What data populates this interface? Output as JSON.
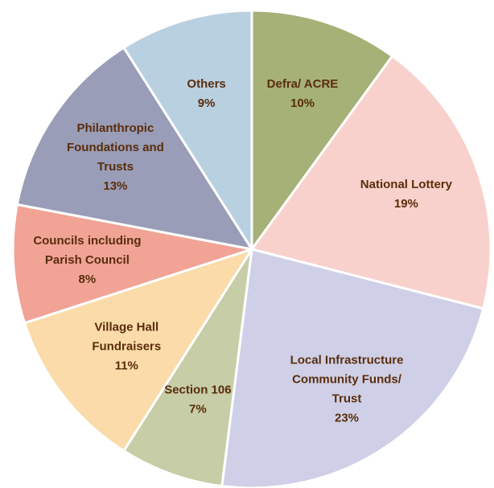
{
  "chart_data": {
    "type": "pie",
    "title": "",
    "start_angle_deg": 0,
    "direction": "clockwise",
    "slices": [
      {
        "label_lines": [
          "Defra/ ACRE"
        ],
        "value": 10,
        "value_label": "10%",
        "color": "#a5b176"
      },
      {
        "label_lines": [
          "National Lottery"
        ],
        "value": 19,
        "value_label": "19%",
        "color": "#f8d1cc"
      },
      {
        "label_lines": [
          "Local Infrastructure",
          "Community Funds/",
          "Trust"
        ],
        "value": 23,
        "value_label": "23%",
        "color": "#cfd0e7"
      },
      {
        "label_lines": [
          "Section 106"
        ],
        "value": 7,
        "value_label": "7%",
        "color": "#c6cda7"
      },
      {
        "label_lines": [
          "Village Hall",
          "Fundraisers"
        ],
        "value": 11,
        "value_label": "11%",
        "color": "#fadba9"
      },
      {
        "label_lines": [
          "Councils including",
          "Parish Council"
        ],
        "value": 8,
        "value_label": "8%",
        "color": "#f1a396"
      },
      {
        "label_lines": [
          "Philanthropic",
          "Foundations and",
          "Trusts"
        ],
        "value": 13,
        "value_label": "13%",
        "color": "#999db7"
      },
      {
        "label_lines": [
          "Others"
        ],
        "value": 9,
        "value_label": "9%",
        "color": "#b9d0e1"
      }
    ]
  }
}
